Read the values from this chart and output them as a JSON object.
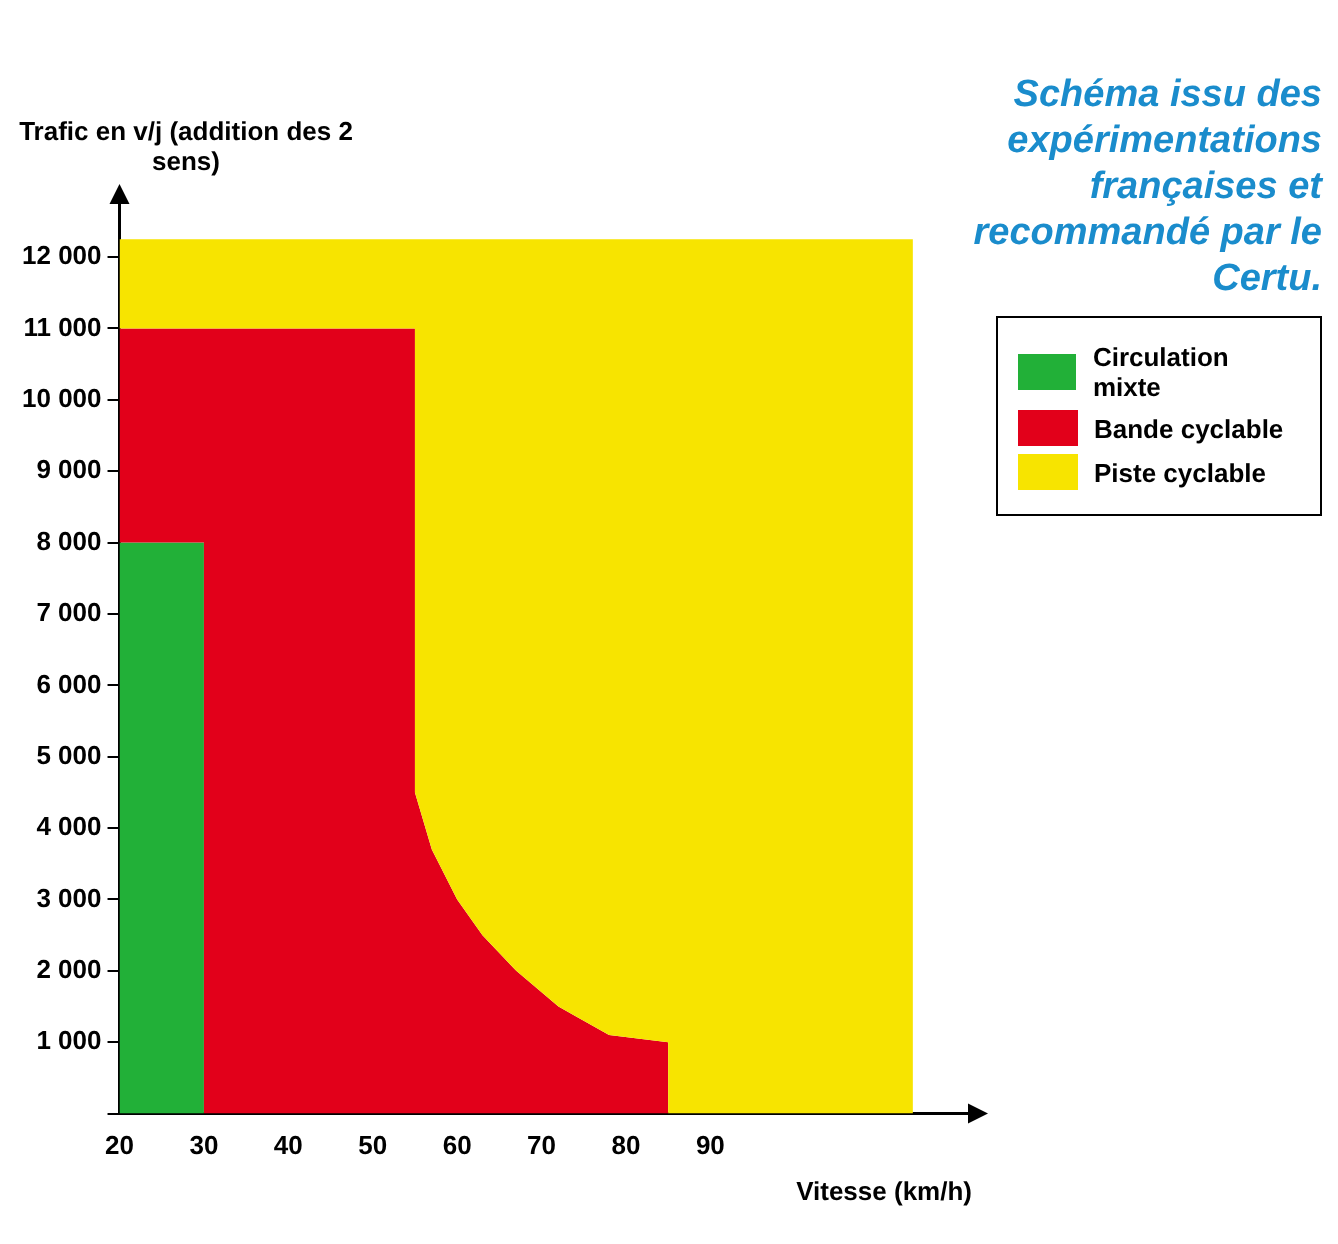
{
  "chart_data": {
    "type": "area",
    "stacked": true,
    "annotations": [
      "Schéma issu des expérimentations françaises et recommandé par le Certu."
    ],
    "xlabel": "Vitesse (km/h)",
    "ylabel": "Trafic en v/j (addition des 2 sens)",
    "x": [
      20,
      30,
      30,
      55,
      55,
      57,
      60,
      63,
      67,
      72,
      78,
      85,
      85,
      114
    ],
    "series": [
      {
        "name": "Circulation mixte",
        "color": "#22b038",
        "values": [
          8000,
          8000,
          0,
          0,
          0,
          0,
          0,
          0,
          0,
          0,
          0,
          0,
          0,
          0
        ]
      },
      {
        "name": "Bande cyclable",
        "color": "#e2001a",
        "values": [
          3000,
          3000,
          11000,
          11000,
          4500,
          3700,
          3000,
          2500,
          2000,
          1500,
          1100,
          1000,
          0,
          0
        ]
      },
      {
        "name": "Piste cyclable",
        "color": "#f7e400",
        "values": [
          1250,
          1250,
          1250,
          1250,
          7750,
          8550,
          9250,
          9750,
          10250,
          10750,
          11150,
          11250,
          12250,
          12250
        ]
      }
    ],
    "xlim": [
      20,
      121
    ],
    "xticks": [
      20,
      30,
      40,
      50,
      60,
      70,
      80,
      90
    ],
    "ylim": [
      0,
      12800
    ],
    "yticks": [
      {
        "value": 0,
        "label": null
      },
      {
        "value": 1000,
        "label": "1 000"
      },
      {
        "value": 2000,
        "label": "2 000"
      },
      {
        "value": 3000,
        "label": "3 000"
      },
      {
        "value": 4000,
        "label": "4 000"
      },
      {
        "value": 5000,
        "label": "5 000"
      },
      {
        "value": 6000,
        "label": "6 000"
      },
      {
        "value": 7000,
        "label": "7 000"
      },
      {
        "value": 8000,
        "label": "8 000"
      },
      {
        "value": 9000,
        "label": "9 000"
      },
      {
        "value": 10000,
        "label": "10 000"
      },
      {
        "value": 11000,
        "label": "11 000"
      },
      {
        "value": 12000,
        "label": "12 000"
      }
    ],
    "grid": false,
    "legend": "right"
  }
}
